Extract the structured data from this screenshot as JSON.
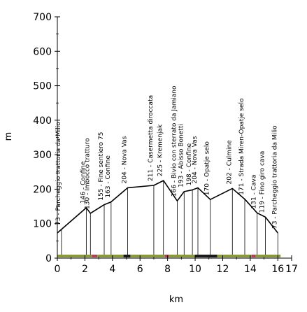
{
  "chart_data": {
    "type": "area",
    "xlabel": "km",
    "ylabel": "m",
    "xlim": [
      0,
      17
    ],
    "ylim": [
      0,
      700
    ],
    "xticks": [
      0,
      2,
      4,
      6,
      8,
      10,
      12,
      14,
      16
    ],
    "xtick_labels": [
      "0",
      "2",
      "4",
      "6",
      "8",
      "10",
      "12",
      "14",
      "16"
    ],
    "extra_xtick_labels": [
      {
        "x": 17,
        "label": "17"
      }
    ],
    "yticks": [
      0,
      100,
      200,
      300,
      400,
      500,
      600,
      700
    ],
    "ytick_labels": [
      "0",
      "100",
      "200",
      "300",
      "400",
      "500",
      "600",
      "700"
    ],
    "grid": false,
    "profile": {
      "x": [
        0,
        2.1,
        2.4,
        3.4,
        3.9,
        5.1,
        7.0,
        7.7,
        8.7,
        9.2,
        9.8,
        10.2,
        11.1,
        12.7,
        13.6,
        14.5,
        15.1,
        16.0
      ],
      "y": [
        73,
        146,
        130,
        155,
        163,
        204,
        211,
        225,
        166,
        193,
        198,
        204,
        170,
        202,
        171,
        131,
        119,
        73
      ],
      "fill": "#ffffff",
      "line_color": "#000000"
    },
    "waypoints": [
      {
        "x": 0.3,
        "y": 73,
        "label": "73 - Parcheggio trattoria da Milio"
      },
      {
        "x": 2.1,
        "y": 146,
        "label": "146 - Confine"
      },
      {
        "x": 2.4,
        "y": 130,
        "label": "130 - Imbocco tratturo"
      },
      {
        "x": 3.4,
        "y": 155,
        "label": "155 - Fine sentiero 75"
      },
      {
        "x": 3.9,
        "y": 163,
        "label": "163 - Confine"
      },
      {
        "x": 5.1,
        "y": 204,
        "label": "204 - Nova Vas"
      },
      {
        "x": 7.0,
        "y": 211,
        "label": "211 - Casermetta diroccata"
      },
      {
        "x": 7.7,
        "y": 225,
        "label": "225 - Kremenjak"
      },
      {
        "x": 8.7,
        "y": 166,
        "label": "166 - Bivio con sterrato da Jamiano"
      },
      {
        "x": 9.2,
        "y": 193,
        "label": "193 - Abisso Bonetti"
      },
      {
        "x": 9.8,
        "y": 198,
        "label": "198 - Confine"
      },
      {
        "x": 10.2,
        "y": 204,
        "label": "204 - Nova Vas"
      },
      {
        "x": 11.1,
        "y": 170,
        "label": "170 - Opatje selo"
      },
      {
        "x": 12.7,
        "y": 202,
        "label": "202 - Culmine"
      },
      {
        "x": 13.6,
        "y": 171,
        "label": "171 - Strada Miren-Opatje selo"
      },
      {
        "x": 14.5,
        "y": 131,
        "label": "131 - Cava"
      },
      {
        "x": 15.1,
        "y": 119,
        "label": "119 - Fino giro cava"
      },
      {
        "x": 16.0,
        "y": 73,
        "label": "73 - Parcheggio trattoria da Milio"
      }
    ],
    "surface_segments": [
      {
        "x0": 0.0,
        "x1": 2.5,
        "color": "#8a9a3a"
      },
      {
        "x0": 2.5,
        "x1": 2.9,
        "color": "#b0405a"
      },
      {
        "x0": 2.9,
        "x1": 4.8,
        "color": "#8a9a3a"
      },
      {
        "x0": 4.8,
        "x1": 5.3,
        "color": "#1a1a1a"
      },
      {
        "x0": 5.3,
        "x1": 7.8,
        "color": "#8a9a3a"
      },
      {
        "x0": 7.8,
        "x1": 8.1,
        "color": "#b0405a"
      },
      {
        "x0": 8.1,
        "x1": 10.0,
        "color": "#8a9a3a"
      },
      {
        "x0": 10.0,
        "x1": 11.6,
        "color": "#1a1a1a"
      },
      {
        "x0": 11.6,
        "x1": 14.1,
        "color": "#8a9a3a"
      },
      {
        "x0": 14.1,
        "x1": 14.4,
        "color": "#b0405a"
      },
      {
        "x0": 14.4,
        "x1": 16.2,
        "color": "#8a9a3a"
      }
    ]
  }
}
